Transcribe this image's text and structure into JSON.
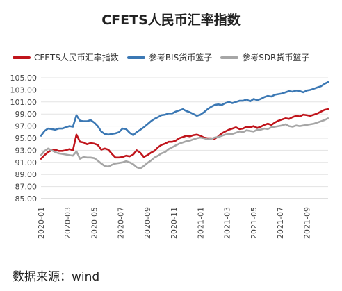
{
  "chart_data": {
    "type": "line",
    "title": "CFETS人民币汇率指数",
    "xlabel": "",
    "ylabel": "",
    "ylim": [
      85,
      105
    ],
    "yticks": [
      "85.00",
      "87.00",
      "89.00",
      "91.00",
      "93.00",
      "95.00",
      "97.00",
      "99.00",
      "101.00",
      "103.00",
      "105.00"
    ],
    "xticks": [
      "2020-01",
      "2020-03",
      "2020-05",
      "2020-07",
      "2020-09",
      "2020-11",
      "2021-01",
      "2021-03",
      "2021-05",
      "2021-07",
      "2021-09"
    ],
    "grid": "horizontal",
    "legend_position": "top",
    "colors": {
      "cfets": "#c0141b",
      "bis": "#3b78b4",
      "sdr": "#a6a6a6"
    },
    "series": [
      {
        "name": "CFETS人民币汇率指数",
        "values": [
          91.6,
          92.2,
          92.7,
          93.0,
          93.1,
          92.9,
          92.9,
          93.0,
          93.2,
          93.0,
          95.6,
          94.4,
          94.3,
          94.0,
          94.2,
          94.1,
          93.9,
          93.1,
          93.3,
          93.1,
          92.4,
          91.8,
          91.8,
          91.9,
          92.1,
          92.0,
          92.3,
          93.0,
          92.6,
          91.9,
          92.2,
          92.6,
          92.9,
          93.5,
          93.9,
          94.1,
          94.4,
          94.4,
          94.6,
          95.0,
          95.2,
          95.4,
          95.3,
          95.5,
          95.6,
          95.4,
          95.1,
          95.0,
          95.0,
          94.9,
          95.3,
          95.8,
          96.1,
          96.4,
          96.6,
          96.8,
          96.5,
          96.6,
          96.9,
          96.8,
          97.0,
          96.7,
          96.9,
          97.2,
          97.4,
          97.2,
          97.6,
          97.9,
          98.1,
          98.3,
          98.2,
          98.5,
          98.7,
          98.6,
          98.9,
          98.8,
          98.7,
          98.9,
          99.1,
          99.4,
          99.7,
          99.8
        ]
      },
      {
        "name": "参考BIS货币篮子",
        "values": [
          95.4,
          96.2,
          96.6,
          96.5,
          96.4,
          96.6,
          96.6,
          96.8,
          97.0,
          96.9,
          98.8,
          97.9,
          97.8,
          97.8,
          98.0,
          97.6,
          97.0,
          96.1,
          95.7,
          95.6,
          95.7,
          95.8,
          96.0,
          96.6,
          96.5,
          95.9,
          95.5,
          96.0,
          96.4,
          96.8,
          97.3,
          97.8,
          98.2,
          98.5,
          98.8,
          98.9,
          99.1,
          99.1,
          99.4,
          99.6,
          99.8,
          99.5,
          99.3,
          99.0,
          98.7,
          98.9,
          99.3,
          99.8,
          100.2,
          100.5,
          100.6,
          100.5,
          100.8,
          101.0,
          100.8,
          101.0,
          101.2,
          101.2,
          101.4,
          101.1,
          101.5,
          101.3,
          101.5,
          101.8,
          102.0,
          101.9,
          102.2,
          102.3,
          102.4,
          102.6,
          102.8,
          102.7,
          102.9,
          102.8,
          102.6,
          102.9,
          103.0,
          103.2,
          103.4,
          103.6,
          104.0,
          104.3
        ]
      },
      {
        "name": "参考SDR货币篮子",
        "values": [
          92.2,
          92.9,
          93.3,
          93.0,
          92.7,
          92.5,
          92.4,
          92.3,
          92.2,
          92.1,
          92.8,
          91.6,
          91.9,
          91.8,
          91.8,
          91.7,
          91.3,
          90.8,
          90.4,
          90.3,
          90.6,
          90.8,
          90.9,
          91.0,
          91.2,
          91.0,
          90.7,
          90.2,
          90.0,
          90.4,
          90.9,
          91.3,
          91.8,
          92.1,
          92.5,
          92.7,
          93.2,
          93.5,
          93.8,
          94.1,
          94.3,
          94.5,
          94.6,
          94.8,
          95.0,
          95.1,
          95.0,
          94.8,
          94.9,
          95.1,
          95.2,
          95.4,
          95.6,
          95.7,
          95.7,
          95.9,
          96.1,
          96.0,
          96.3,
          96.2,
          96.1,
          96.4,
          96.4,
          96.6,
          96.5,
          96.8,
          96.9,
          97.0,
          97.1,
          97.3,
          97.0,
          96.9,
          97.1,
          97.0,
          97.1,
          97.2,
          97.3,
          97.4,
          97.6,
          97.8,
          98.0,
          98.3
        ]
      }
    ],
    "source_note": "数据来源：wind"
  }
}
